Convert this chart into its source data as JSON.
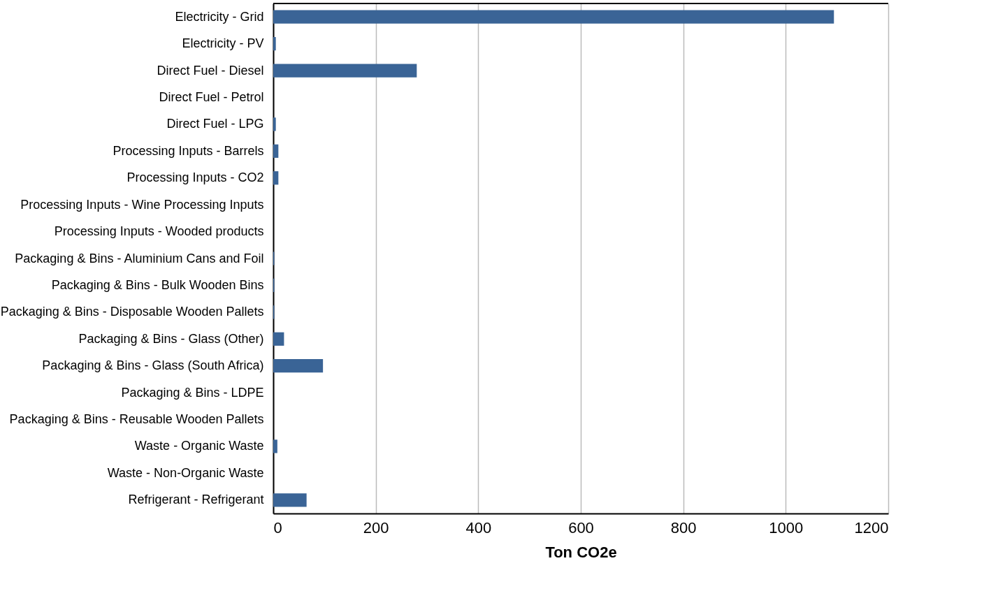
{
  "chart_data": {
    "type": "bar",
    "orientation": "horizontal",
    "xlabel": "Ton CO2e",
    "categories": [
      "Electricity - Grid",
      "Electricity - PV",
      "Direct Fuel - Diesel",
      "Direct Fuel - Petrol",
      "Direct Fuel - LPG",
      "Processing Inputs - Barrels",
      "Processing Inputs - CO2",
      "Processing Inputs - Wine Processing Inputs",
      "Processing Inputs - Wooded products",
      "Packaging & Bins - Aluminium Cans and Foil",
      "Packaging & Bins - Bulk Wooden Bins",
      "Packaging & Bins - Disposable Wooden Pallets",
      "Packaging & Bins - Glass (Other)",
      "Packaging & Bins - Glass (South Africa)",
      "Packaging & Bins - LDPE",
      "Packaging & Bins - Reusable Wooden Pallets",
      "Waste - Organic Waste",
      "Waste - Non-Organic Waste",
      "Refrigerant - Refrigerant"
    ],
    "values": [
      1094,
      5,
      280,
      0,
      5,
      10,
      10,
      0,
      0,
      2,
      2,
      2,
      21,
      97,
      0,
      0,
      8,
      0,
      65
    ],
    "color": "#3a6496",
    "xlim": [
      0,
      1200
    ],
    "xticks": [
      0,
      200,
      400,
      600,
      800,
      1000,
      1200
    ],
    "grid": "x"
  }
}
